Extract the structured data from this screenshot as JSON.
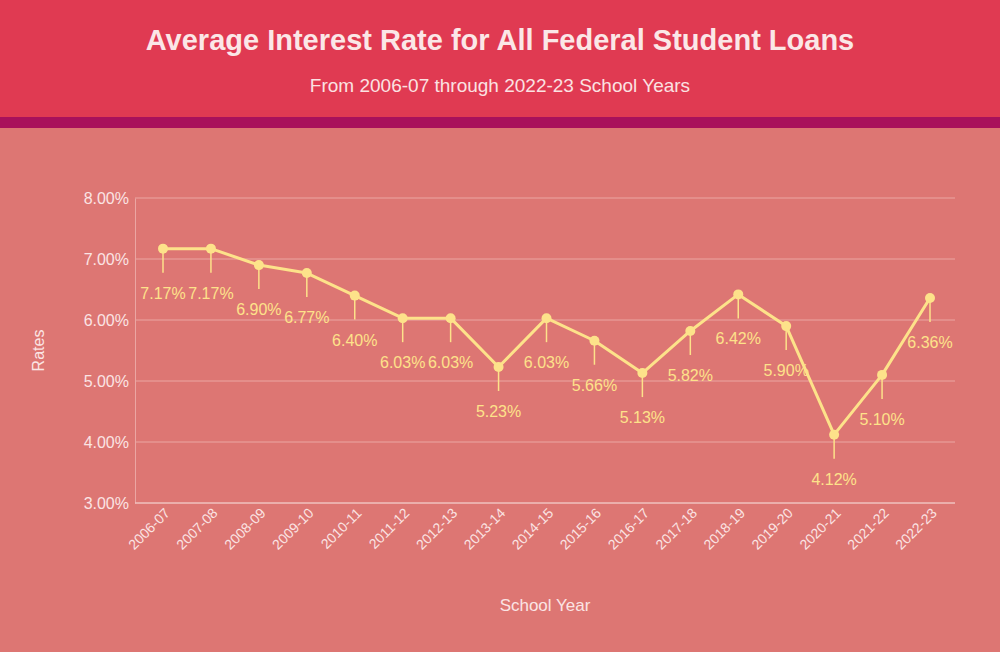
{
  "chart_data": {
    "type": "line",
    "title": "Average Interest Rate for All Federal Student Loans",
    "subtitle": "From 2006-07 through 2022-23 School Years",
    "x_label": "School Year",
    "y_label": "Rates",
    "categories": [
      "2006-07",
      "2007-08",
      "2008-09",
      "2009-10",
      "2010-11",
      "2011-12",
      "2012-13",
      "2013-14",
      "2014-15",
      "2015-16",
      "2016-17",
      "2017-18",
      "2018-19",
      "2019-20",
      "2020-21",
      "2021-22",
      "2022-23"
    ],
    "values": [
      7.17,
      7.17,
      6.9,
      6.77,
      6.4,
      6.03,
      6.03,
      5.23,
      6.03,
      5.66,
      5.13,
      5.82,
      6.42,
      5.9,
      4.12,
      5.1,
      6.36
    ],
    "value_labels": [
      "7.17%",
      "7.17%",
      "6.90%",
      "6.77%",
      "6.40%",
      "6.03%",
      "6.03%",
      "5.23%",
      "6.03%",
      "5.66%",
      "5.13%",
      "5.82%",
      "6.42%",
      "5.90%",
      "4.12%",
      "5.10%",
      "6.36%"
    ],
    "color": "#fde28a",
    "marker": "circle",
    "ylim": [
      3,
      8
    ],
    "yticks": [
      {
        "value": 3,
        "label": "3.00%"
      },
      {
        "value": 4,
        "label": "4.00%"
      },
      {
        "value": 5,
        "label": "5.00%"
      },
      {
        "value": 6,
        "label": "6.00%"
      },
      {
        "value": 7,
        "label": "7.00%"
      },
      {
        "value": 8,
        "label": "8.00%"
      }
    ],
    "grid": true,
    "data_labels": true
  }
}
